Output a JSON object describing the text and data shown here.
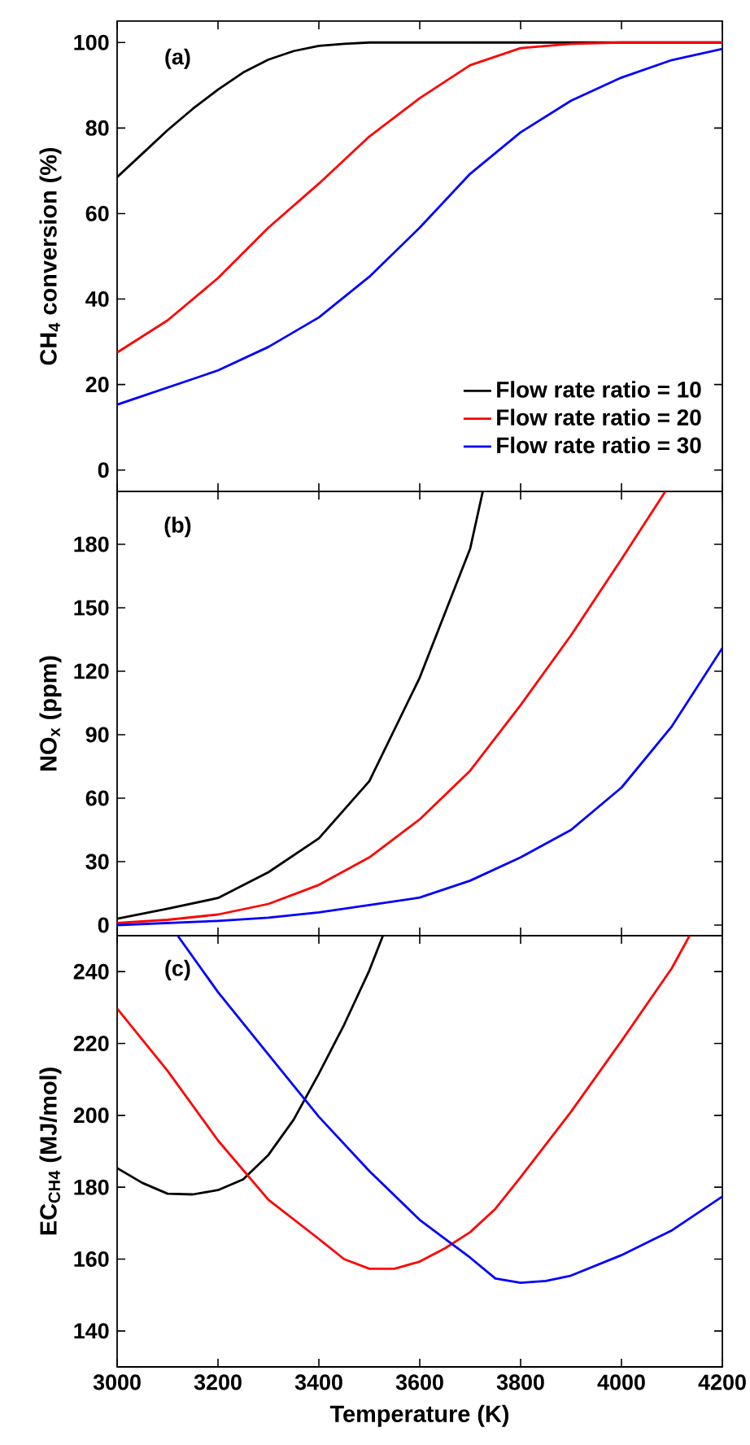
{
  "chart_data": [
    {
      "type": "line",
      "ylabel": "CH$_{4}$ conversion (%)",
      "annotations": [
        "(a)"
      ],
      "xlim": [
        3000,
        4200
      ],
      "ylim": [
        -5,
        105
      ],
      "xticks": [
        3000,
        3200,
        3400,
        3600,
        3800,
        4000,
        4200
      ],
      "yticks": [
        0,
        20,
        40,
        60,
        80,
        100
      ],
      "tick_labels": "y",
      "legend": "bottom right",
      "series": [
        {
          "name": "Flow rate ratio = 10",
          "color": "#000000",
          "x": [
            3000,
            3050,
            3100,
            3150,
            3200,
            3250,
            3300,
            3350,
            3400,
            3450,
            3500,
            4200
          ],
          "values": [
            68.5,
            74,
            79.5,
            84.5,
            89,
            93,
            96,
            98,
            99.2,
            99.7,
            100,
            100
          ]
        },
        {
          "name": "Flow rate ratio = 20",
          "color": "#ff0000",
          "x": [
            3000,
            3100,
            3200,
            3300,
            3400,
            3500,
            3600,
            3700,
            3800,
            3900,
            4000,
            4200
          ],
          "values": [
            27.5,
            35,
            44.9,
            56.7,
            67,
            78,
            87,
            94.7,
            98.7,
            99.7,
            100,
            100
          ]
        },
        {
          "name": "Flow rate ratio = 30",
          "color": "#0000ff",
          "x": [
            3000,
            3100,
            3200,
            3300,
            3400,
            3500,
            3600,
            3700,
            3800,
            3900,
            4000,
            4100,
            4200
          ],
          "values": [
            15.3,
            19.3,
            23.3,
            28.8,
            35.7,
            45.2,
            56.7,
            69.3,
            79,
            86.4,
            91.8,
            95.9,
            98.5
          ]
        }
      ]
    },
    {
      "type": "line",
      "ylabel": "NO$_{x}$ (ppm)",
      "annotations": [
        "(b)"
      ],
      "xlim": [
        3000,
        4200
      ],
      "ylim": [
        -5,
        205
      ],
      "xticks": [
        3000,
        3200,
        3400,
        3600,
        3800,
        4000,
        4200
      ],
      "yticks": [
        0,
        30,
        60,
        90,
        120,
        150,
        180
      ],
      "tick_labels": "y",
      "series": [
        {
          "color": "#000000",
          "x": [
            3000,
            3100,
            3200,
            3300,
            3400,
            3500,
            3600,
            3700,
            3725
          ],
          "values": [
            3,
            7.7,
            12.8,
            25,
            41,
            68,
            117,
            178,
            205
          ]
        },
        {
          "color": "#ff0000",
          "x": [
            3000,
            3100,
            3200,
            3300,
            3400,
            3500,
            3600,
            3700,
            3800,
            3900,
            4000,
            4087
          ],
          "values": [
            1,
            2.5,
            5,
            10,
            19,
            32,
            50,
            73,
            104,
            137,
            173,
            205
          ]
        },
        {
          "color": "#0000ff",
          "x": [
            3000,
            3100,
            3200,
            3300,
            3400,
            3500,
            3600,
            3700,
            3800,
            3900,
            4000,
            4100,
            4200
          ],
          "values": [
            0,
            1,
            2,
            3.5,
            6,
            9.5,
            13,
            21,
            32,
            45,
            65,
            94,
            131
          ]
        }
      ]
    },
    {
      "type": "line",
      "xlabel": "Temperature (K)",
      "ylabel": "EC$_{CH4}$ (MJ/mol)",
      "annotations": [
        "(c)"
      ],
      "xlim": [
        3000,
        4200
      ],
      "ylim": [
        130,
        250
      ],
      "xticks": [
        3000,
        3200,
        3400,
        3600,
        3800,
        4000,
        4200
      ],
      "yticks": [
        140,
        160,
        180,
        200,
        220,
        240
      ],
      "series": [
        {
          "color": "#000000",
          "x": [
            3000,
            3050,
            3100,
            3150,
            3200,
            3250,
            3300,
            3350,
            3400,
            3450,
            3500,
            3527
          ],
          "values": [
            185.3,
            181.2,
            178.2,
            178,
            179.2,
            182.2,
            189,
            198.8,
            211.6,
            225.2,
            240.3,
            250
          ]
        },
        {
          "color": "#ff0000",
          "x": [
            3000,
            3100,
            3200,
            3300,
            3400,
            3450,
            3500,
            3550,
            3600,
            3650,
            3700,
            3750,
            3800,
            3900,
            4000,
            4100,
            4135
          ],
          "values": [
            229.7,
            212.4,
            193,
            176.5,
            165.6,
            160,
            157.3,
            157.3,
            159.3,
            163,
            167.5,
            174,
            182.8,
            201,
            220.7,
            241,
            250
          ]
        },
        {
          "color": "#0000ff",
          "x": [
            3120,
            3200,
            3300,
            3400,
            3500,
            3600,
            3700,
            3750,
            3800,
            3850,
            3900,
            4000,
            4100,
            4200
          ],
          "values": [
            250,
            234.3,
            216.9,
            199.6,
            184.5,
            170.9,
            160.4,
            154.6,
            153.4,
            153.9,
            155.4,
            161.1,
            168,
            177.4
          ]
        }
      ]
    }
  ]
}
